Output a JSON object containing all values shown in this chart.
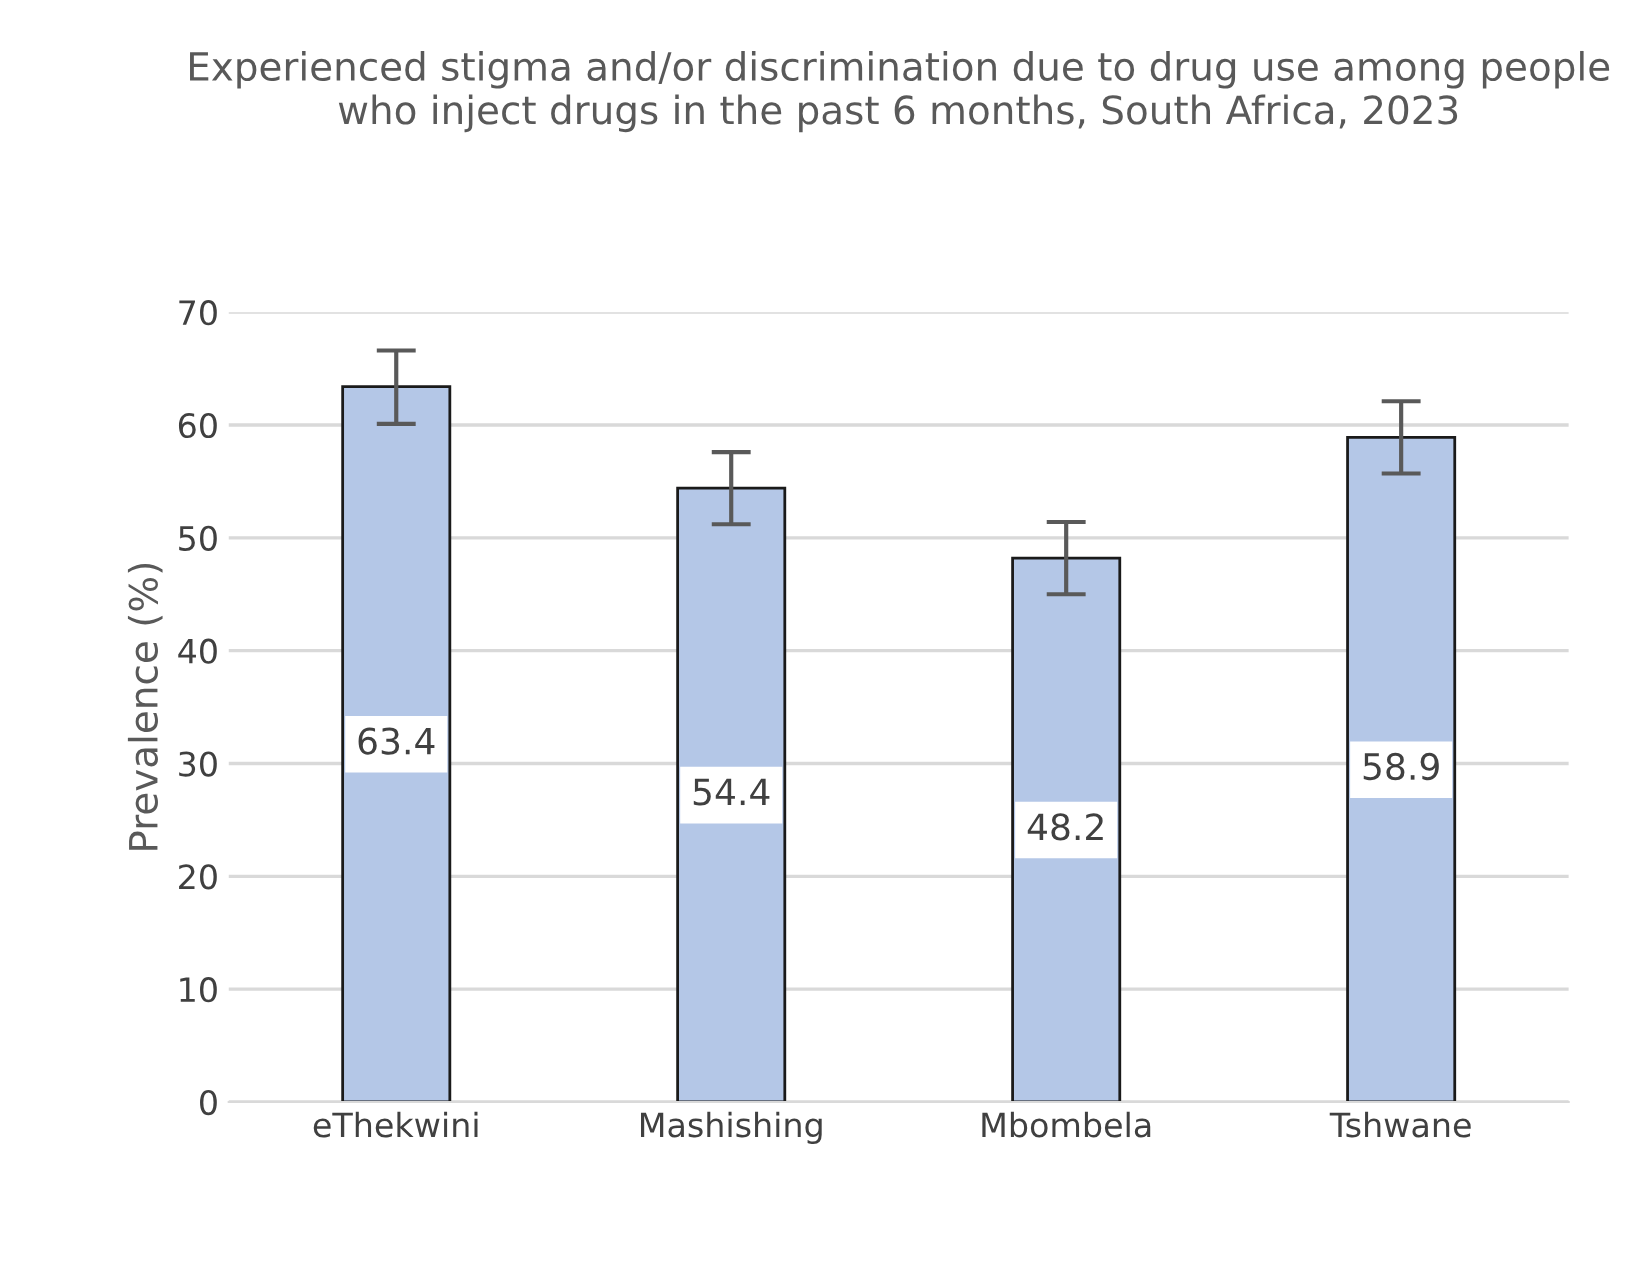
{
  "chart_data": {
    "type": "bar",
    "title": "Experienced stigma and/or discrimination due to drug use among people who inject drugs in the past 6 months, South Africa, 2023",
    "ylabel": "Prevalence (%)",
    "categories": [
      "eThekwini",
      "Mashishing",
      "Mbombela",
      "Tshwane"
    ],
    "values": [
      63.4,
      54.4,
      48.2,
      58.9
    ],
    "errors": [
      [
        60.1,
        66.6
      ],
      [
        51.2,
        57.6
      ],
      [
        45.0,
        51.4
      ],
      [
        55.7,
        62.1
      ]
    ],
    "color": "#b4c7e7",
    "ylim": [
      0,
      70
    ],
    "yticks": [
      0,
      10,
      20,
      30,
      40,
      50,
      60,
      70
    ],
    "grid": "y",
    "data_labels": true
  }
}
